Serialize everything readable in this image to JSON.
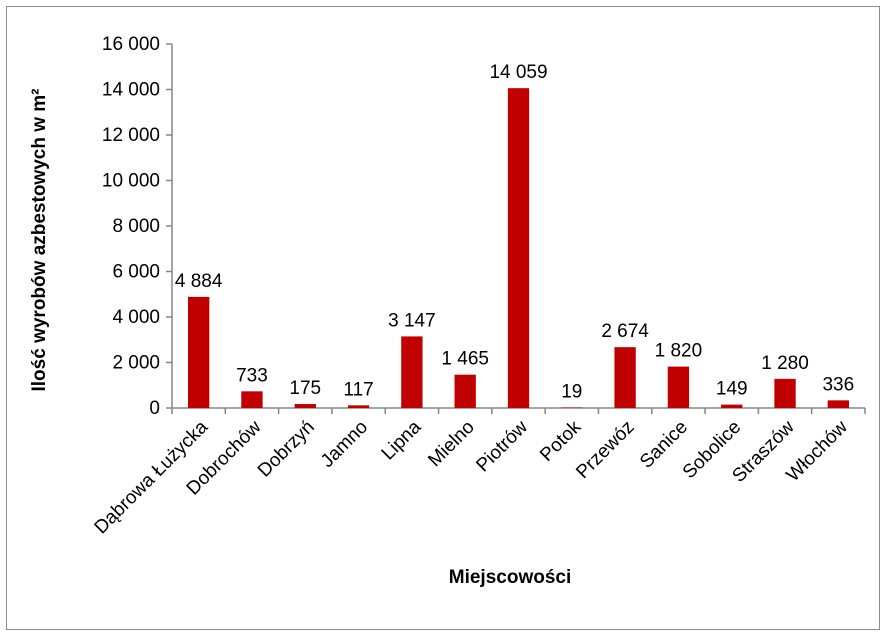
{
  "chart_data": {
    "type": "bar",
    "title": "",
    "xlabel": "Miejscowości",
    "ylabel": "Ilość wyrobów azbestowych w m²",
    "categories": [
      "Dąbrowa Łużycka",
      "Dobrochów",
      "Dobrzyń",
      "Jamno",
      "Lipna",
      "Mielno",
      "Piotrów",
      "Potok",
      "Przewóz",
      "Sanice",
      "Sobolice",
      "Straszów",
      "Włochów"
    ],
    "values": [
      4884,
      733,
      175,
      117,
      3147,
      1465,
      14059,
      19,
      2674,
      1820,
      149,
      1280,
      336
    ],
    "data_labels": [
      "4 884",
      "733",
      "175",
      "117",
      "3 147",
      "1 465",
      "14 059",
      "19",
      "2 674",
      "1 820",
      "149",
      "1 280",
      "336"
    ],
    "ylim": [
      0,
      16000
    ],
    "y_ticks": [
      0,
      2000,
      4000,
      6000,
      8000,
      10000,
      12000,
      14000,
      16000
    ],
    "y_tick_labels": [
      "0",
      "2 000",
      "4 000",
      "6 000",
      "8 000",
      "10 000",
      "12 000",
      "14 000",
      "16 000"
    ],
    "grid": false,
    "legend": "none",
    "bar_color": "#C00000"
  }
}
